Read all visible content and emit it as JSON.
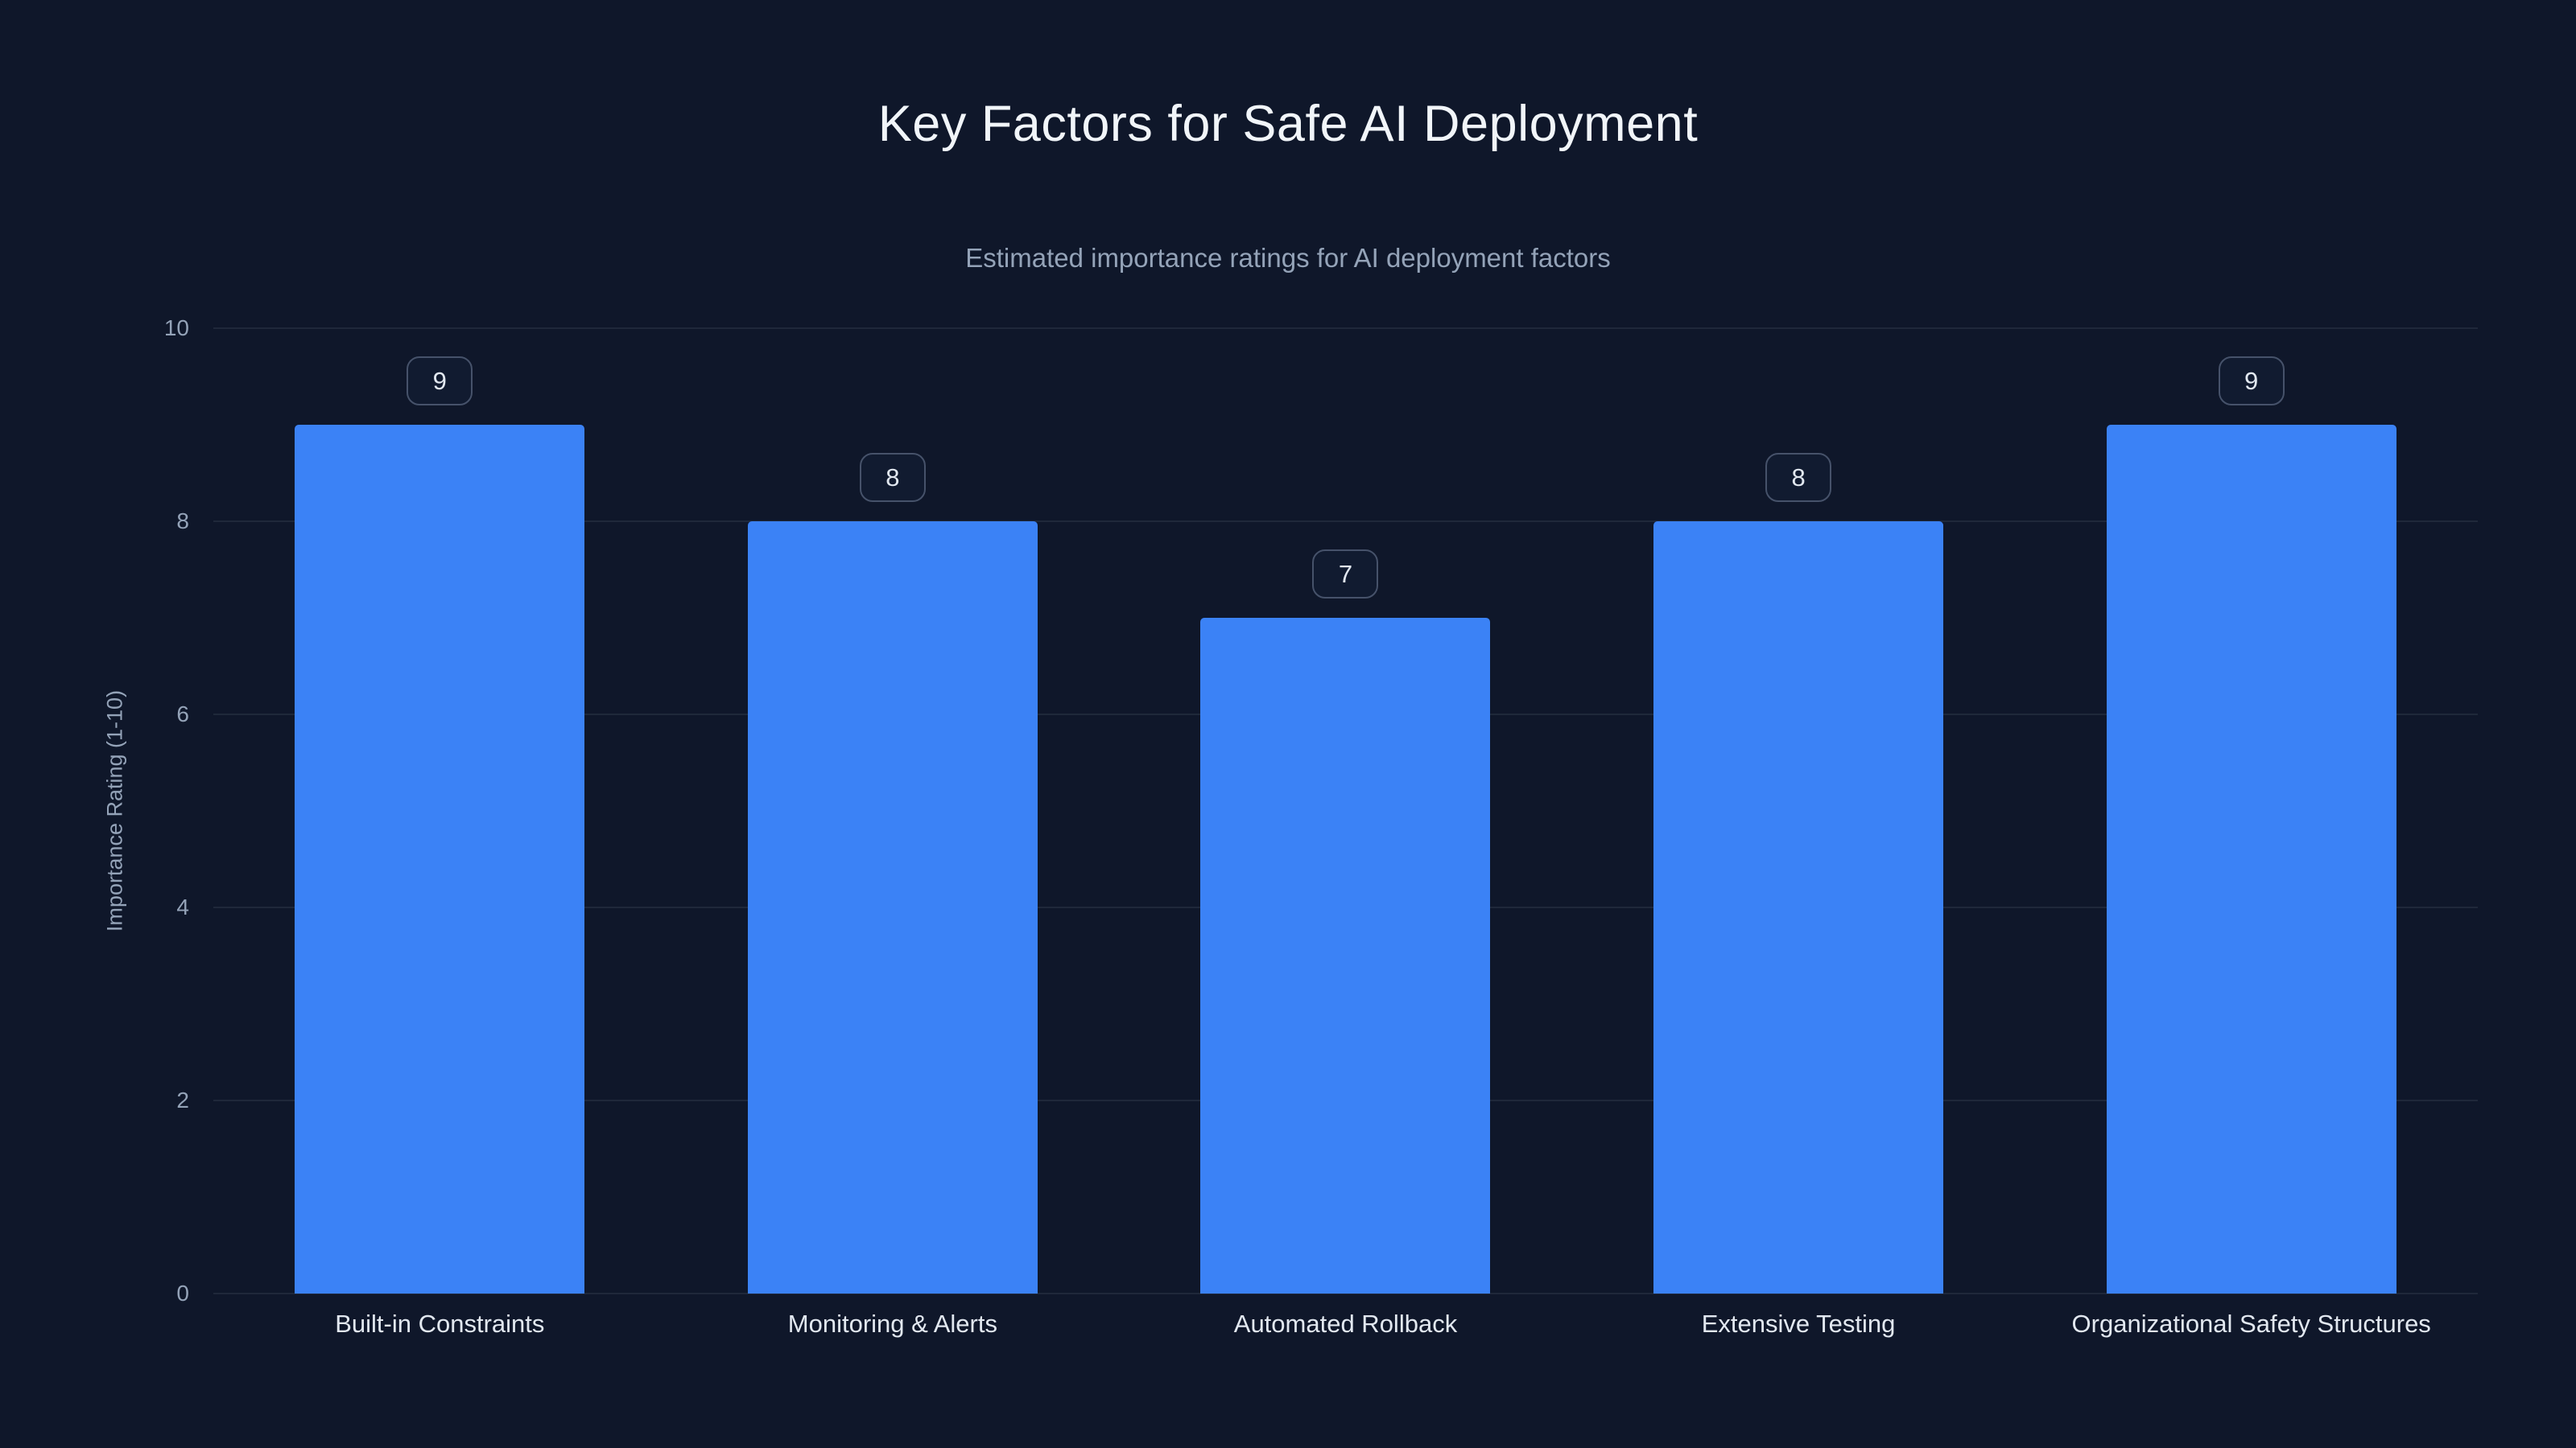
{
  "title": "Key Factors for Safe AI Deployment",
  "subtitle": "Estimated importance ratings for AI deployment factors",
  "chart_data": {
    "type": "bar",
    "title": "Key Factors for Safe AI Deployment",
    "subtitle": "Estimated importance ratings for AI deployment factors",
    "categories": [
      "Built-in Constraints",
      "Monitoring & Alerts",
      "Automated Rollback",
      "Extensive Testing",
      "Organizational Safety Structures"
    ],
    "values": [
      9,
      8,
      7,
      8,
      9
    ],
    "value_labels": [
      "9",
      "8",
      "7",
      "8",
      "9"
    ],
    "xlabel": "",
    "ylabel": "Importance Rating (1-10)",
    "ylim": [
      0,
      10
    ],
    "yticks": [
      0,
      2,
      4,
      6,
      8,
      10
    ],
    "grid": true,
    "legend": "none",
    "bar_color": "#3b82f6",
    "background_color": "#0f172a",
    "title_color": "#f1f5f9",
    "subtitle_color": "#94a3b8",
    "axis_text_color": "#94a3b8",
    "category_label_color": "#e2e8f0"
  }
}
